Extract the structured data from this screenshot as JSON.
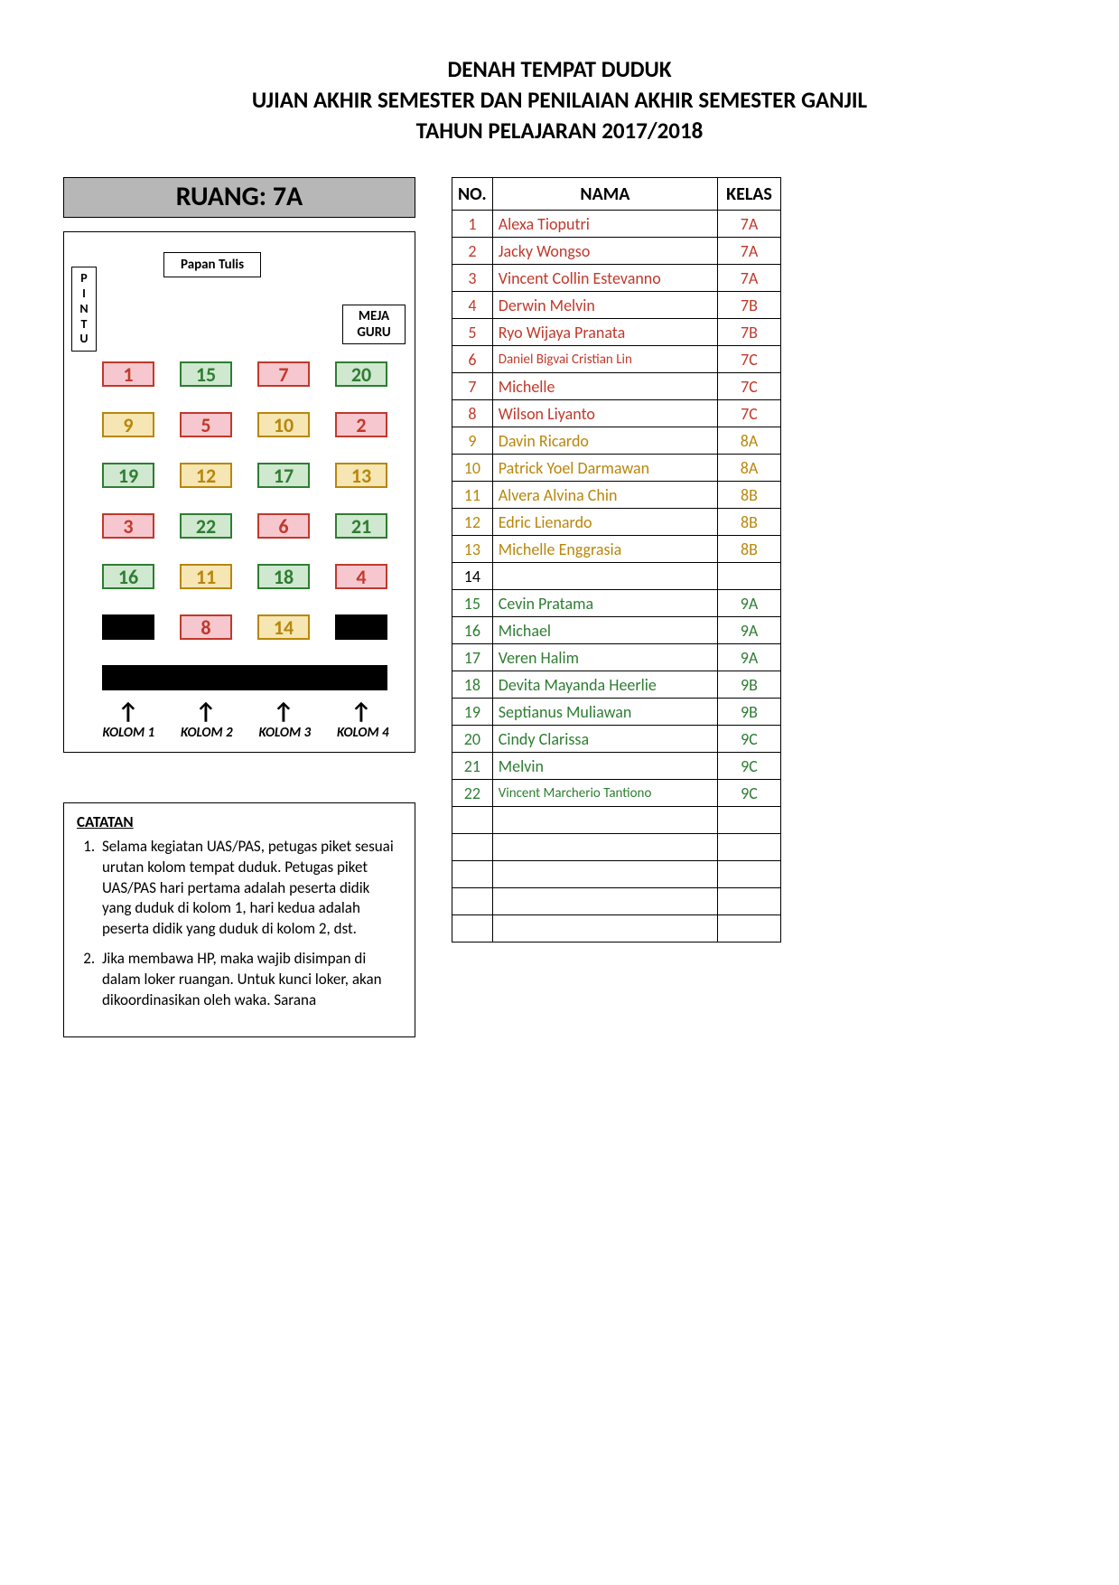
{
  "title": {
    "line1": "DENAH TEMPAT DUDUK",
    "line2": "UJIAN AKHIR SEMESTER DAN PENILAIAN AKHIR SEMESTER GANJIL",
    "line3": "TAHUN PELAJARAN 2017/2018"
  },
  "room_label": "RUANG: 7A",
  "pintu_label": "PINTU",
  "papan_tulis_label": "Papan Tulis",
  "meja_guru_label_1": "MEJA",
  "meja_guru_label_2": "GURU",
  "column_labels": [
    "KOLOM 1",
    "KOLOM 2",
    "KOLOM 3",
    "KOLOM 4"
  ],
  "color_groups": {
    "pink": {
      "bg": "#f7c7cf",
      "border": "#c0392b",
      "text": "#c0392b"
    },
    "green": {
      "bg": "#cfe8cf",
      "border": "#2e7d32",
      "text": "#2e7d32"
    },
    "yellow": {
      "bg": "#f5e6b3",
      "border": "#b8860b",
      "text": "#b8860b"
    },
    "black": {
      "bg": "#000000",
      "border": "#000000",
      "text": "#000000"
    }
  },
  "seat_rows": [
    [
      {
        "n": "1",
        "c": "pink"
      },
      {
        "n": "15",
        "c": "green"
      },
      {
        "n": "7",
        "c": "pink"
      },
      {
        "n": "20",
        "c": "green"
      }
    ],
    [
      {
        "n": "9",
        "c": "yellow"
      },
      {
        "n": "5",
        "c": "pink"
      },
      {
        "n": "10",
        "c": "yellow"
      },
      {
        "n": "2",
        "c": "pink"
      }
    ],
    [
      {
        "n": "19",
        "c": "green"
      },
      {
        "n": "12",
        "c": "yellow"
      },
      {
        "n": "17",
        "c": "green"
      },
      {
        "n": "13",
        "c": "yellow"
      }
    ],
    [
      {
        "n": "3",
        "c": "pink"
      },
      {
        "n": "22",
        "c": "green"
      },
      {
        "n": "6",
        "c": "pink"
      },
      {
        "n": "21",
        "c": "green"
      }
    ],
    [
      {
        "n": "16",
        "c": "green"
      },
      {
        "n": "11",
        "c": "yellow"
      },
      {
        "n": "18",
        "c": "green"
      },
      {
        "n": "4",
        "c": "pink"
      }
    ],
    [
      {
        "n": "",
        "c": "black"
      },
      {
        "n": "8",
        "c": "pink"
      },
      {
        "n": "14",
        "c": "yellow"
      },
      {
        "n": "",
        "c": "black"
      }
    ]
  ],
  "roster_headers": {
    "no": "NO.",
    "nama": "NAMA",
    "kelas": "KELAS"
  },
  "grade_colors": {
    "7": "#c0392b",
    "8": "#b8860b",
    "9": "#2e7d32"
  },
  "roster": [
    {
      "no": "1",
      "nama": "Alexa Tioputri",
      "kelas": "7A"
    },
    {
      "no": "2",
      "nama": "Jacky Wongso",
      "kelas": "7A"
    },
    {
      "no": "3",
      "nama": "Vincent Collin Estevanno",
      "kelas": "7A"
    },
    {
      "no": "4",
      "nama": "Derwin Melvin",
      "kelas": "7B"
    },
    {
      "no": "5",
      "nama": "Ryo Wijaya Pranata",
      "kelas": "7B"
    },
    {
      "no": "6",
      "nama": "Daniel Bigvai Cristian Lin",
      "kelas": "7C"
    },
    {
      "no": "7",
      "nama": "Michelle",
      "kelas": "7C"
    },
    {
      "no": "8",
      "nama": "Wilson Liyanto",
      "kelas": "7C"
    },
    {
      "no": "9",
      "nama": "Davin Ricardo",
      "kelas": "8A"
    },
    {
      "no": "10",
      "nama": "Patrick Yoel Darmawan",
      "kelas": "8A"
    },
    {
      "no": "11",
      "nama": "Alvera Alvina Chin",
      "kelas": "8B"
    },
    {
      "no": "12",
      "nama": "Edric Lienardo",
      "kelas": "8B"
    },
    {
      "no": "13",
      "nama": "Michelle Enggrasia",
      "kelas": "8B"
    },
    {
      "no": "14",
      "nama": "",
      "kelas": ""
    },
    {
      "no": "15",
      "nama": "Cevin Pratama",
      "kelas": "9A"
    },
    {
      "no": "16",
      "nama": "Michael",
      "kelas": "9A"
    },
    {
      "no": "17",
      "nama": "Veren Halim",
      "kelas": "9A"
    },
    {
      "no": "18",
      "nama": "Devita Mayanda Heerlie",
      "kelas": "9B"
    },
    {
      "no": "19",
      "nama": "Septianus Muliawan",
      "kelas": "9B"
    },
    {
      "no": "20",
      "nama": "Cindy Clarissa",
      "kelas": "9C"
    },
    {
      "no": "21",
      "nama": "Melvin",
      "kelas": "9C"
    },
    {
      "no": "22",
      "nama": "Vincent Marcherio Tantiono",
      "kelas": "9C"
    },
    {
      "no": "",
      "nama": "",
      "kelas": ""
    },
    {
      "no": "",
      "nama": "",
      "kelas": ""
    },
    {
      "no": "",
      "nama": "",
      "kelas": ""
    },
    {
      "no": "",
      "nama": "",
      "kelas": ""
    },
    {
      "no": "",
      "nama": "",
      "kelas": ""
    }
  ],
  "catatan_title": "CATATAN",
  "catatan_items": [
    "Selama kegiatan UAS/PAS, petugas piket sesuai urutan kolom tempat duduk. Petugas piket UAS/PAS hari pertama adalah peserta didik yang duduk di kolom 1, hari kedua adalah peserta didik yang duduk di kolom 2, dst.",
    "Jika membawa HP, maka wajib disimpan di dalam loker ruangan. Untuk kunci loker, akan dikoordinasikan oleh waka. Sarana"
  ]
}
